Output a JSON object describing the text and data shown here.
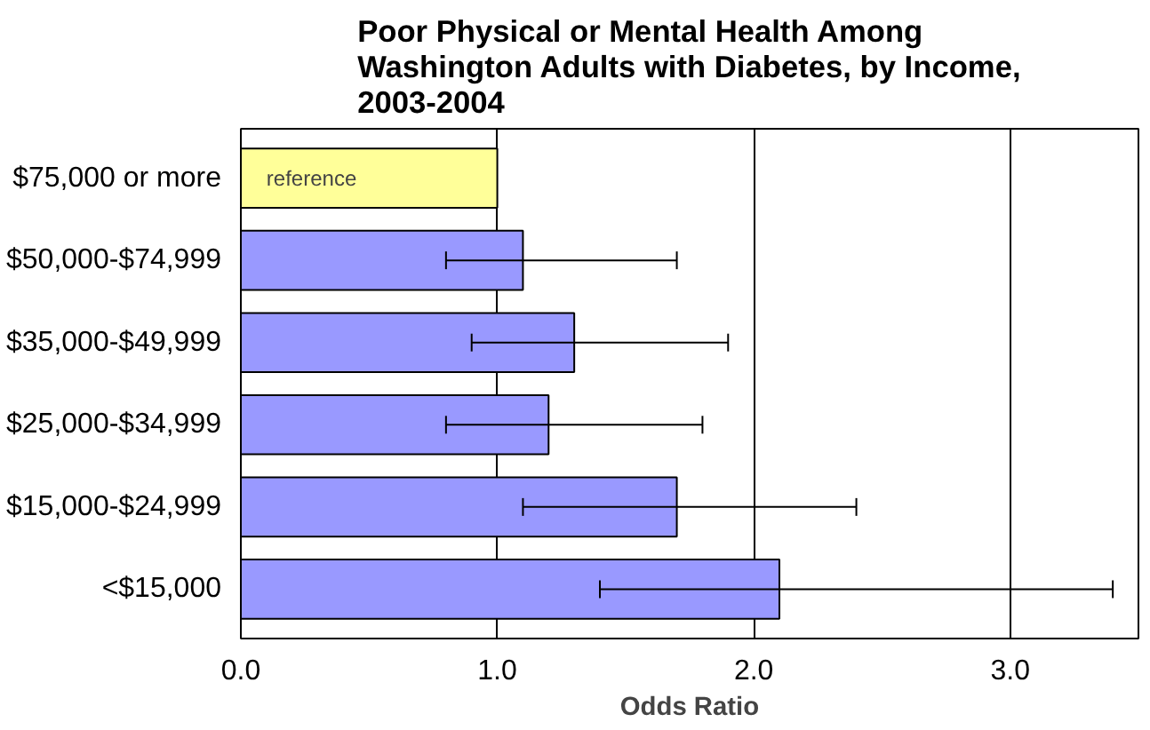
{
  "chart_data": {
    "type": "bar",
    "orientation": "horizontal",
    "title": "Poor Physical or Mental Health Among\nWashington Adults with Diabetes, by Income,\n2003-2004",
    "xlabel": "Odds Ratio",
    "categories": [
      "$75,000 or more",
      "$50,000-$74,999",
      "$35,000-$49,999",
      "$25,000-$34,999",
      "$15,000-$24,999",
      "<$15,000"
    ],
    "values": [
      1.0,
      1.1,
      1.3,
      1.2,
      1.7,
      2.1
    ],
    "colors": [
      "#ffff99",
      "#9999ff",
      "#9999ff",
      "#9999ff",
      "#9999ff",
      "#9999ff"
    ],
    "errors": [
      null,
      [
        0.8,
        1.7
      ],
      [
        0.9,
        1.9
      ],
      [
        0.8,
        1.8
      ],
      [
        1.1,
        2.4
      ],
      [
        1.4,
        3.4
      ]
    ],
    "xlim": [
      0,
      3.5
    ],
    "xticks": [
      {
        "value": 0,
        "label": "0.0"
      },
      {
        "value": 1,
        "label": "1.0"
      },
      {
        "value": 2,
        "label": "2.0"
      },
      {
        "value": 3,
        "label": "3.0"
      }
    ],
    "grid": "x",
    "annotations": [
      {
        "text": "reference",
        "x": 0.1,
        "y": "$75,000 or more"
      }
    ]
  }
}
